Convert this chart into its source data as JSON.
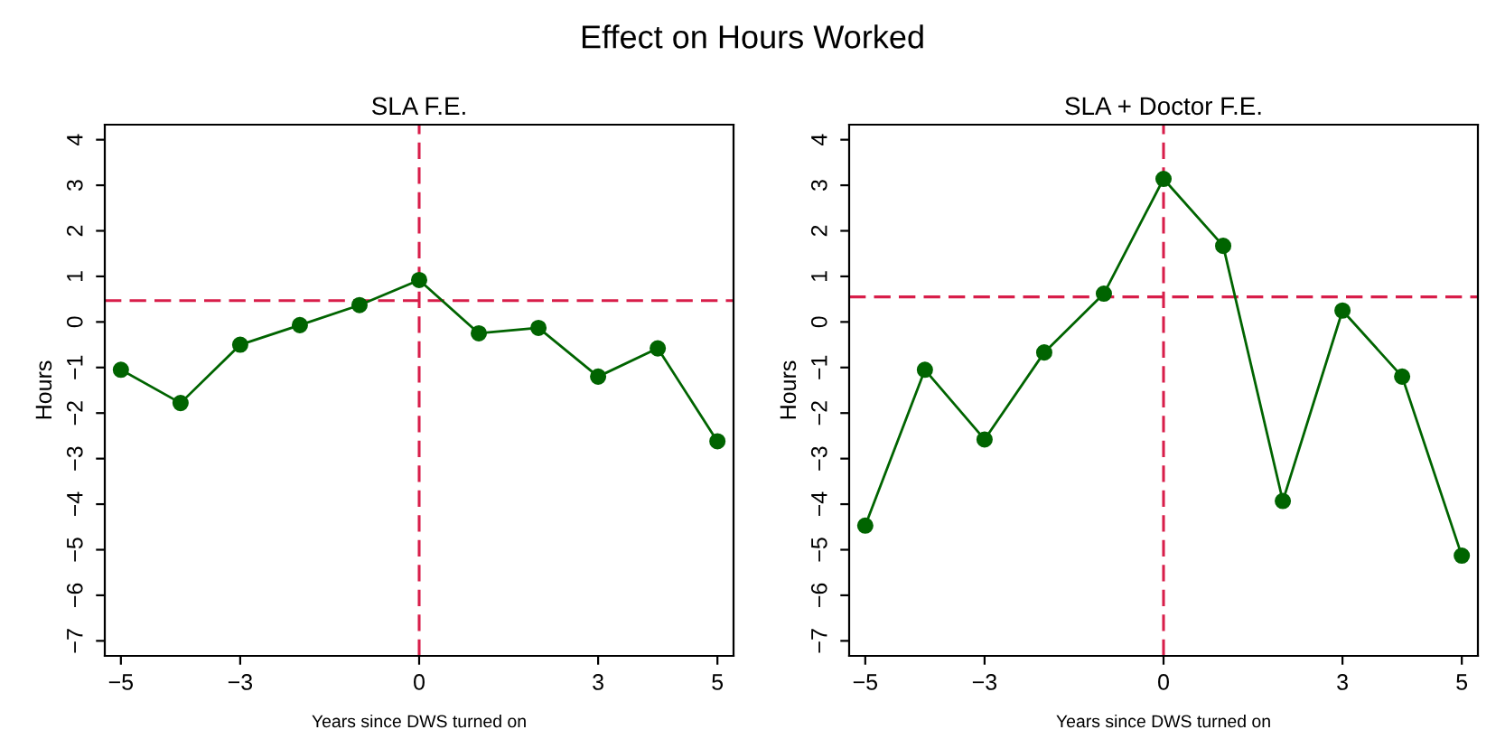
{
  "chart_data": [
    {
      "type": "line",
      "title": "SLA F.E.",
      "annotations": [
        "Effect on Hours Worked"
      ],
      "xlabel": "Years since DWS turned on",
      "ylabel": "Hours",
      "x": [
        -5,
        -4,
        -3,
        -2,
        -1,
        0,
        1,
        2,
        3,
        4,
        5
      ],
      "series": [
        {
          "color": "#006400",
          "values": [
            -1.05,
            -1.78,
            -0.5,
            -0.07,
            0.37,
            0.92,
            -0.25,
            -0.13,
            -1.2,
            -0.58,
            -2.62
          ]
        }
      ],
      "marker": "circle",
      "line_style": "solid",
      "grid": false,
      "legend": false,
      "xlim": [
        -5.27,
        5.27
      ],
      "ylim": [
        -7.33,
        4.33
      ],
      "xticks": [
        -5,
        -3,
        0,
        3,
        5
      ],
      "yticks": [
        -7,
        -6,
        -5,
        -4,
        -3,
        -2,
        -1,
        0,
        1,
        2,
        3,
        4
      ],
      "ref_lines": [
        {
          "axis": "x",
          "value": 0,
          "color": "#d81e4a",
          "line_style": "dashed"
        },
        {
          "axis": "y",
          "value": 0.47,
          "color": "#d81e4a",
          "line_style": "dashed"
        }
      ]
    },
    {
      "type": "line",
      "title": "SLA + Doctor F.E.",
      "xlabel": "Years since DWS turned on",
      "ylabel": "Hours",
      "x": [
        -5,
        -4,
        -3,
        -2,
        -1,
        0,
        1,
        2,
        3,
        4,
        5
      ],
      "series": [
        {
          "color": "#006400",
          "values": [
            -4.47,
            -1.05,
            -2.58,
            -0.67,
            0.62,
            3.14,
            1.67,
            -3.93,
            0.25,
            -1.2,
            -5.13
          ]
        }
      ],
      "marker": "circle",
      "line_style": "solid",
      "grid": false,
      "legend": false,
      "xlim": [
        -5.27,
        5.27
      ],
      "ylim": [
        -7.33,
        4.33
      ],
      "xticks": [
        -5,
        -3,
        0,
        3,
        5
      ],
      "yticks": [
        -7,
        -6,
        -5,
        -4,
        -3,
        -2,
        -1,
        0,
        1,
        2,
        3,
        4
      ],
      "ref_lines": [
        {
          "axis": "x",
          "value": 0,
          "color": "#d81e4a",
          "line_style": "dashed"
        },
        {
          "axis": "y",
          "value": 0.55,
          "color": "#d81e4a",
          "line_style": "dashed"
        }
      ]
    }
  ]
}
